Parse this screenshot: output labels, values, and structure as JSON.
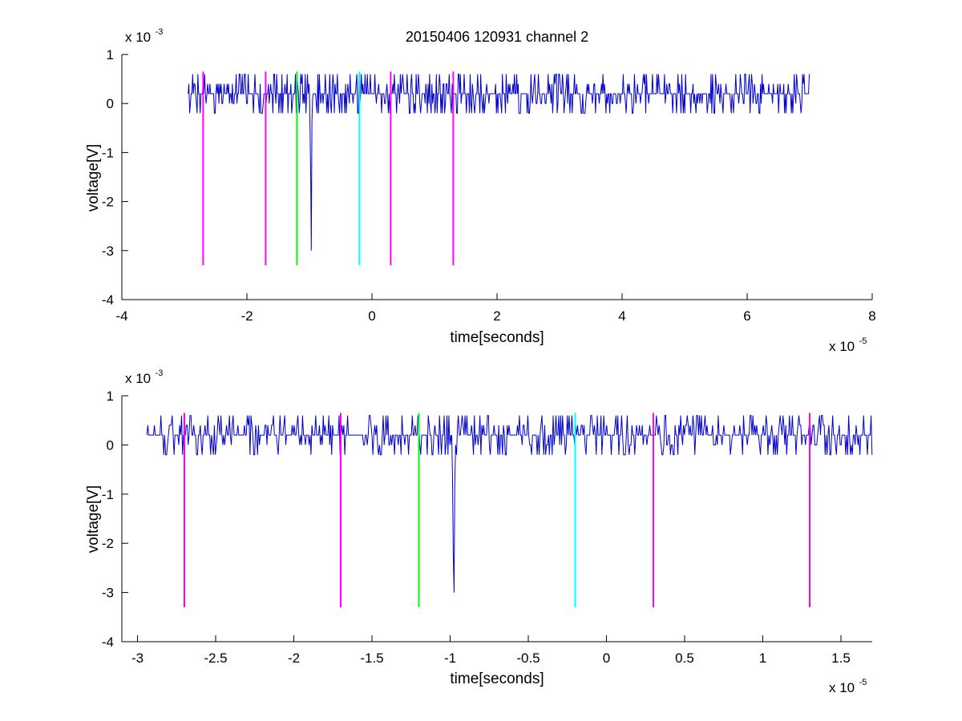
{
  "chart_data": [
    {
      "type": "line",
      "title": "20150406 120931 channel 2",
      "xlabel": "time[seconds]",
      "ylabel": "voltage[V]",
      "x_multiplier": "x 10",
      "x_exponent": "-5",
      "y_multiplier": "x 10",
      "y_exponent": "-3",
      "xlim": [
        -4,
        8
      ],
      "ylim": [
        -4,
        1
      ],
      "x_ticks": [
        -4,
        -2,
        0,
        2,
        4,
        6,
        8
      ],
      "x_tick_labels": [
        "-4",
        "-2",
        "0",
        "2",
        "4",
        "6",
        "8"
      ],
      "y_ticks": [
        1,
        0,
        -1,
        -2,
        -3,
        -4
      ],
      "y_tick_labels": [
        "1",
        "0",
        "-1",
        "-2",
        "-3",
        "-4"
      ],
      "grid": false,
      "signal_x_range": [
        -2.94,
        7.0
      ],
      "signal_baseline": 0.15,
      "signal_noise_levels": [
        -0.2,
        0,
        0.2,
        0.4,
        0.6
      ],
      "spike": {
        "x": -0.97,
        "points": [
          [
            -1.0,
            0.2
          ],
          [
            -0.99,
            -0.6
          ],
          [
            -0.98,
            -1.5
          ],
          [
            -0.97,
            -3.0
          ],
          [
            -0.96,
            -0.4
          ],
          [
            -0.95,
            0.1
          ]
        ]
      },
      "series": [
        {
          "x": [
            -2.7,
            -1.7,
            0.3,
            1.3
          ],
          "y_range": [
            -3.3,
            0.65
          ],
          "color": "#ff00ff"
        },
        {
          "x": [
            -1.2
          ],
          "y_range": [
            -3.3,
            0.65
          ],
          "color": "#00ff00"
        },
        {
          "x": [
            -0.2
          ],
          "y_range": [
            -3.3,
            0.65
          ],
          "color": "#00ffff"
        }
      ],
      "signal_color": "#0000cc"
    },
    {
      "type": "line",
      "xlabel": "time[seconds]",
      "ylabel": "voltage[V]",
      "x_multiplier": "x 10",
      "x_exponent": "-5",
      "y_multiplier": "x 10",
      "y_exponent": "-3",
      "xlim": [
        -3.1,
        1.7
      ],
      "ylim": [
        -4,
        1
      ],
      "x_ticks": [
        -3,
        -2.5,
        -2,
        -1.5,
        -1,
        -0.5,
        0,
        0.5,
        1,
        1.5
      ],
      "x_tick_labels": [
        "-3",
        "-2.5",
        "-2",
        "-1.5",
        "-1",
        "-0.5",
        "0",
        "0.5",
        "1",
        "1.5"
      ],
      "y_ticks": [
        1,
        0,
        -1,
        -2,
        -3,
        -4
      ],
      "y_tick_labels": [
        "1",
        "0",
        "-1",
        "-2",
        "-3",
        "-4"
      ],
      "grid": false,
      "signal_x_range": [
        -2.94,
        1.7
      ],
      "signal_baseline": 0.15,
      "signal_noise_levels": [
        -0.2,
        0,
        0.2,
        0.4,
        0.6
      ],
      "spike": {
        "x": -0.97,
        "points": [
          [
            -0.99,
            0.2
          ],
          [
            -0.985,
            -0.6
          ],
          [
            -0.98,
            -2.2
          ],
          [
            -0.975,
            -3.0
          ],
          [
            -0.97,
            -0.8
          ],
          [
            -0.965,
            0.0
          ]
        ]
      },
      "series": [
        {
          "x": [
            -2.7,
            -1.7,
            0.3,
            1.3
          ],
          "y_range": [
            -3.3,
            0.65
          ],
          "color": "#ff00ff"
        },
        {
          "x": [
            -1.2
          ],
          "y_range": [
            -3.3,
            0.65
          ],
          "color": "#00ff00"
        },
        {
          "x": [
            -0.2
          ],
          "y_range": [
            -3.3,
            0.65
          ],
          "color": "#00ffff"
        }
      ],
      "signal_color": "#0000cc"
    }
  ]
}
